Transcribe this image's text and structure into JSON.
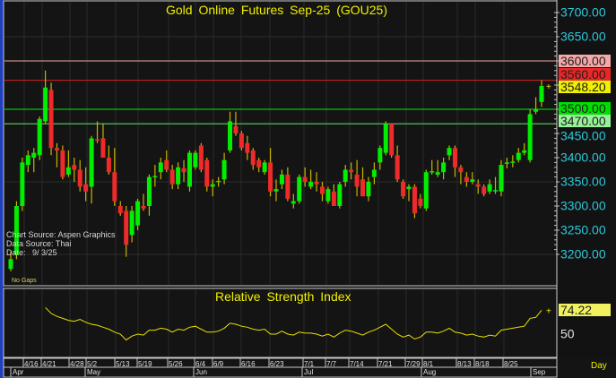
{
  "chart_data": {
    "type": "candlestick",
    "title": "Gold Online Futures Sep-25 (GOU25)",
    "source_lines": [
      "Chart Source: Aspen Graphics",
      "Data Source: Thai",
      "Date:   9/ 3/25"
    ],
    "gaps_note": "No Gaps",
    "y_ticks": [
      "3700.00",
      "3650.00",
      "3450.00",
      "3400.00",
      "3350.00",
      "3300.00",
      "3250.00",
      "3200.00"
    ],
    "ylim": [
      3165,
      3725
    ],
    "levels": [
      {
        "value": "3600.00",
        "color": "#c88a8a",
        "bg": "#f4a8a8"
      },
      {
        "value": "3560.00",
        "color": "#b02020",
        "bg": "#e82828"
      },
      {
        "value": "3500.00",
        "color": "#00c800",
        "bg": "#00e000"
      },
      {
        "value": "3470.00",
        "color": "#60d060",
        "bg": "#98f098"
      }
    ],
    "last_price": {
      "value": "3548.20",
      "bg": "#f0f000"
    },
    "colors": {
      "up": "#00ee00",
      "down": "#ee2a2a",
      "wick": "#c8b400",
      "text": "#f0f000"
    },
    "ohlc": [
      [
        3170,
        3205,
        3165,
        3190
      ],
      [
        3200,
        3310,
        3190,
        3300
      ],
      [
        3300,
        3400,
        3290,
        3390
      ],
      [
        3385,
        3415,
        3370,
        3405
      ],
      [
        3400,
        3420,
        3370,
        3410
      ],
      [
        3405,
        3485,
        3395,
        3480
      ],
      [
        3475,
        3580,
        3470,
        3545
      ],
      [
        3540,
        3555,
        3405,
        3420
      ],
      [
        3420,
        3430,
        3380,
        3415
      ],
      [
        3415,
        3425,
        3355,
        3360
      ],
      [
        3365,
        3415,
        3360,
        3380
      ],
      [
        3385,
        3400,
        3350,
        3375
      ],
      [
        3375,
        3395,
        3330,
        3340
      ],
      [
        3345,
        3380,
        3310,
        3330
      ],
      [
        3340,
        3445,
        3305,
        3440
      ],
      [
        3438,
        3475,
        3430,
        3436
      ],
      [
        3440,
        3470,
        3400,
        3400
      ],
      [
        3400,
        3425,
        3365,
        3370
      ],
      [
        3370,
        3420,
        3300,
        3310
      ],
      [
        3300,
        3310,
        3280,
        3285
      ],
      [
        3290,
        3300,
        3195,
        3220
      ],
      [
        3240,
        3300,
        3225,
        3290
      ],
      [
        3260,
        3315,
        3250,
        3310
      ],
      [
        3300,
        3325,
        3290,
        3295
      ],
      [
        3300,
        3365,
        3280,
        3360
      ],
      [
        3360,
        3385,
        3340,
        3362
      ],
      [
        3370,
        3400,
        3355,
        3390
      ],
      [
        3395,
        3415,
        3370,
        3375
      ],
      [
        3375,
        3385,
        3335,
        3345
      ],
      [
        3345,
        3390,
        3335,
        3380
      ],
      [
        3378,
        3395,
        3350,
        3370
      ],
      [
        3340,
        3415,
        3330,
        3410
      ],
      [
        3380,
        3415,
        3375,
        3410
      ],
      [
        3425,
        3430,
        3370,
        3375
      ],
      [
        3395,
        3400,
        3330,
        3340
      ],
      [
        3340,
        3355,
        3320,
        3345
      ],
      [
        3352,
        3360,
        3340,
        3352
      ],
      [
        3355,
        3410,
        3345,
        3395
      ],
      [
        3415,
        3495,
        3410,
        3475
      ],
      [
        3465,
        3495,
        3445,
        3450
      ],
      [
        3450,
        3455,
        3415,
        3420
      ],
      [
        3430,
        3445,
        3395,
        3410
      ],
      [
        3415,
        3420,
        3375,
        3385
      ],
      [
        3395,
        3400,
        3370,
        3380
      ],
      [
        3370,
        3395,
        3365,
        3390
      ],
      [
        3390,
        3420,
        3320,
        3330
      ],
      [
        3330,
        3355,
        3310,
        3335
      ],
      [
        3345,
        3375,
        3335,
        3365
      ],
      [
        3365,
        3380,
        3310,
        3315
      ],
      [
        3305,
        3325,
        3295,
        3310
      ],
      [
        3310,
        3365,
        3305,
        3360
      ],
      [
        3360,
        3380,
        3340,
        3350
      ],
      [
        3340,
        3375,
        3335,
        3350
      ],
      [
        3350,
        3370,
        3330,
        3345
      ],
      [
        3340,
        3350,
        3310,
        3325
      ],
      [
        3310,
        3340,
        3305,
        3335
      ],
      [
        3330,
        3345,
        3300,
        3300
      ],
      [
        3300,
        3350,
        3295,
        3345
      ],
      [
        3350,
        3385,
        3340,
        3375
      ],
      [
        3375,
        3390,
        3355,
        3370
      ],
      [
        3365,
        3395,
        3320,
        3340
      ],
      [
        3355,
        3380,
        3320,
        3320
      ],
      [
        3320,
        3360,
        3310,
        3350
      ],
      [
        3360,
        3390,
        3345,
        3375
      ],
      [
        3390,
        3425,
        3375,
        3420
      ],
      [
        3410,
        3475,
        3405,
        3470
      ],
      [
        3470,
        3470,
        3400,
        3405
      ],
      [
        3405,
        3425,
        3350,
        3355
      ],
      [
        3350,
        3355,
        3315,
        3320
      ],
      [
        3335,
        3345,
        3310,
        3340
      ],
      [
        3340,
        3345,
        3275,
        3285
      ],
      [
        3315,
        3325,
        3295,
        3300
      ],
      [
        3295,
        3375,
        3290,
        3370
      ],
      [
        3372,
        3395,
        3365,
        3372
      ],
      [
        3365,
        3395,
        3360,
        3370
      ],
      [
        3370,
        3400,
        3355,
        3390
      ],
      [
        3405,
        3425,
        3395,
        3420
      ],
      [
        3420,
        3425,
        3360,
        3380
      ],
      [
        3380,
        3385,
        3345,
        3370
      ],
      [
        3360,
        3370,
        3340,
        3350
      ],
      [
        3350,
        3370,
        3345,
        3355
      ],
      [
        3345,
        3355,
        3325,
        3340
      ],
      [
        3340,
        3345,
        3320,
        3325
      ],
      [
        3330,
        3355,
        3325,
        3345
      ],
      [
        3333,
        3360,
        3325,
        3333
      ],
      [
        3330,
        3395,
        3320,
        3385
      ],
      [
        3388,
        3400,
        3378,
        3390
      ],
      [
        3390,
        3405,
        3380,
        3392
      ],
      [
        3395,
        3420,
        3390,
        3410
      ],
      [
        3410,
        3430,
        3405,
        3415
      ],
      [
        3395,
        3500,
        3390,
        3490
      ],
      [
        3495,
        3525,
        3490,
        3500
      ],
      [
        3515,
        3560,
        3505,
        3548.2
      ]
    ],
    "rsi": {
      "title": "Relative Strength Index",
      "last": "74.22",
      "tick": "50",
      "ylim": [
        25,
        95
      ],
      "values": [
        77,
        71,
        68,
        66,
        64,
        63,
        65,
        62,
        60,
        59,
        57,
        55,
        52,
        50,
        44,
        48,
        50,
        49,
        54,
        54,
        56,
        55,
        52,
        55,
        54,
        57,
        58,
        55,
        52,
        52,
        53,
        56,
        61,
        60,
        58,
        57,
        55,
        54,
        55,
        50,
        50,
        53,
        50,
        49,
        52,
        51,
        51,
        50,
        48,
        50,
        47,
        51,
        54,
        53,
        51,
        49,
        52,
        54,
        57,
        60,
        55,
        50,
        47,
        49,
        45,
        47,
        52,
        52,
        51,
        53,
        56,
        52,
        51,
        49,
        50,
        48,
        47,
        49,
        48,
        54,
        55,
        56,
        57,
        58,
        66,
        67,
        74.22
      ]
    },
    "x_day_labels": [
      "4/16",
      "4/21",
      "4/28",
      "5/2",
      "5/13",
      "5/19",
      "5/26",
      "6/4",
      "6/9",
      "6/16",
      "6/23",
      "7/1",
      "7/7",
      "7/14",
      "7/21",
      "7/29",
      "8/1",
      "8/13",
      "8/18",
      "8/25"
    ],
    "x_month_labels": [
      "Apr",
      "May",
      "Jun",
      "Jul",
      "Aug",
      "Sep"
    ],
    "period": "Day"
  }
}
